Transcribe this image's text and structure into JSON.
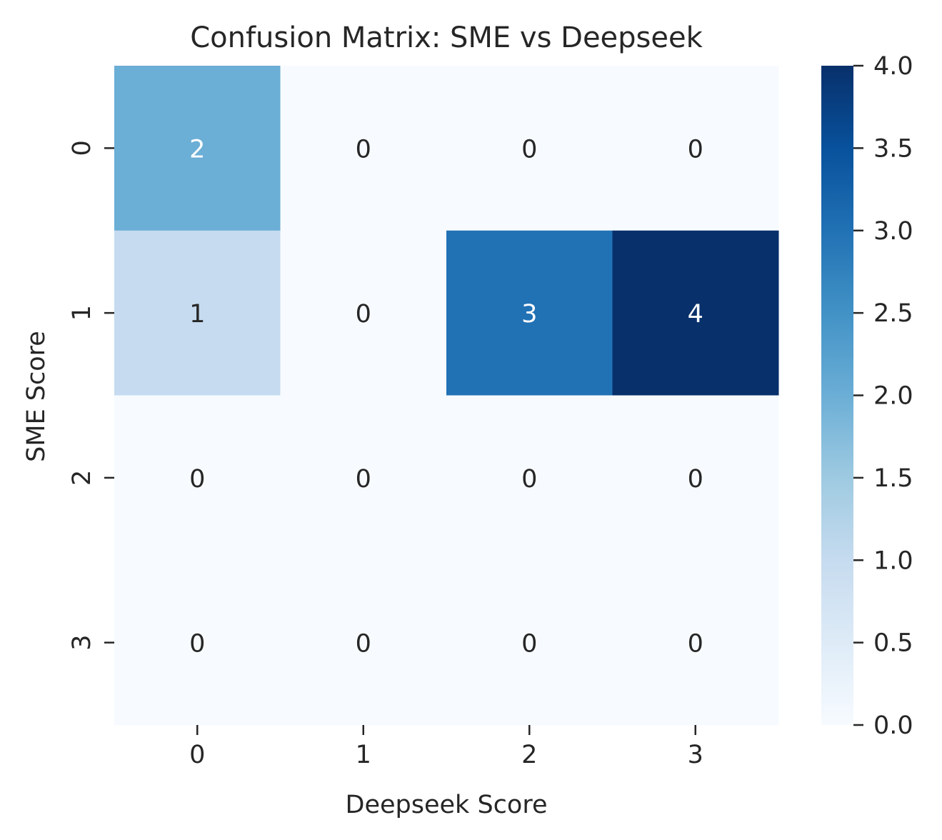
{
  "chart_data": {
    "type": "heatmap",
    "title": "Confusion Matrix: SME vs Deepseek",
    "xlabel": "Deepseek Score",
    "ylabel": "SME Score",
    "x_categories": [
      "0",
      "1",
      "2",
      "3"
    ],
    "y_categories": [
      "0",
      "1",
      "2",
      "3"
    ],
    "values": [
      [
        2,
        0,
        0,
        0
      ],
      [
        1,
        0,
        3,
        4
      ],
      [
        0,
        0,
        0,
        0
      ],
      [
        0,
        0,
        0,
        0
      ]
    ],
    "colormap": "Blues",
    "colorbar": {
      "range": [
        0.0,
        4.0
      ],
      "ticks": [
        "0.0",
        "0.5",
        "1.0",
        "1.5",
        "2.0",
        "2.5",
        "3.0",
        "3.5",
        "4.0"
      ]
    },
    "annotations": true,
    "grid": false
  }
}
